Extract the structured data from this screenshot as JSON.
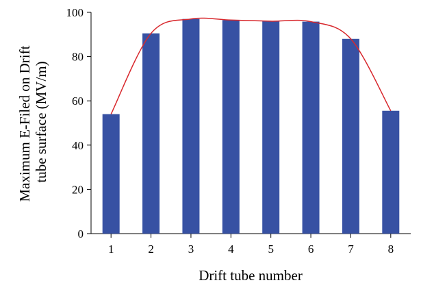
{
  "chart_data": {
    "type": "bar",
    "categories": [
      "1",
      "2",
      "3",
      "4",
      "5",
      "6",
      "7",
      "8"
    ],
    "values": [
      54,
      90.5,
      97,
      96.5,
      96,
      95.8,
      88,
      55.5
    ],
    "xlabel": "Drift tube number",
    "ylabel_lines": [
      "Maximum E-Filed on Drift",
      "tube surface (MV/m)"
    ],
    "ylim": [
      0,
      100
    ],
    "yticks": [
      0,
      20,
      40,
      60,
      80,
      100
    ],
    "grid": false,
    "legend": "none",
    "overlay_line": {
      "type": "line",
      "smooth": true,
      "values": [
        54,
        90.5,
        97,
        96.5,
        96,
        95.8,
        88,
        55.5
      ]
    },
    "colors": {
      "bar": "#3751a3",
      "line": "#d8282d"
    }
  }
}
